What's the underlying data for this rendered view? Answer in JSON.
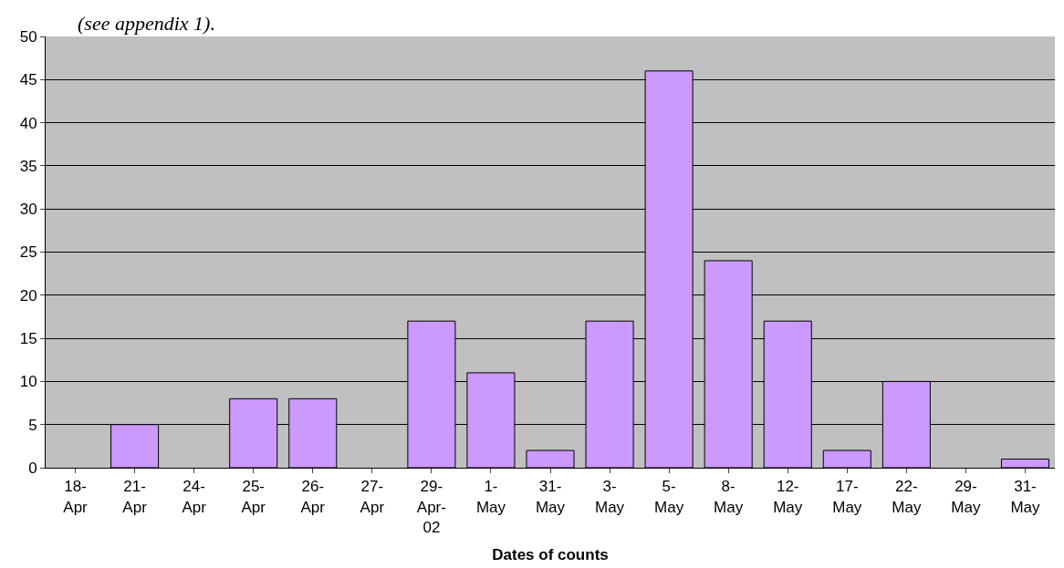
{
  "chart_data": {
    "type": "bar",
    "annotations": [
      "(see appendix 1)."
    ],
    "xlabel": "Dates of counts",
    "categories": [
      "18-Apr",
      "21-Apr",
      "24-Apr",
      "25-Apr",
      "26-Apr",
      "27-Apr",
      "29-Apr-02",
      "1-May",
      "31-May",
      "3-May",
      "5-May",
      "8-May",
      "12-May",
      "17-May",
      "22-May",
      "29-May",
      "31-May"
    ],
    "values": [
      0,
      5,
      0,
      8,
      8,
      0,
      17,
      11,
      2,
      17,
      46,
      24,
      17,
      2,
      10,
      0,
      1
    ],
    "color": "#cc99ff",
    "ylim": [
      0,
      50
    ],
    "yticks": [
      0,
      5,
      10,
      15,
      20,
      25,
      30,
      35,
      40,
      45,
      50
    ],
    "grid": "y",
    "legend": false
  }
}
